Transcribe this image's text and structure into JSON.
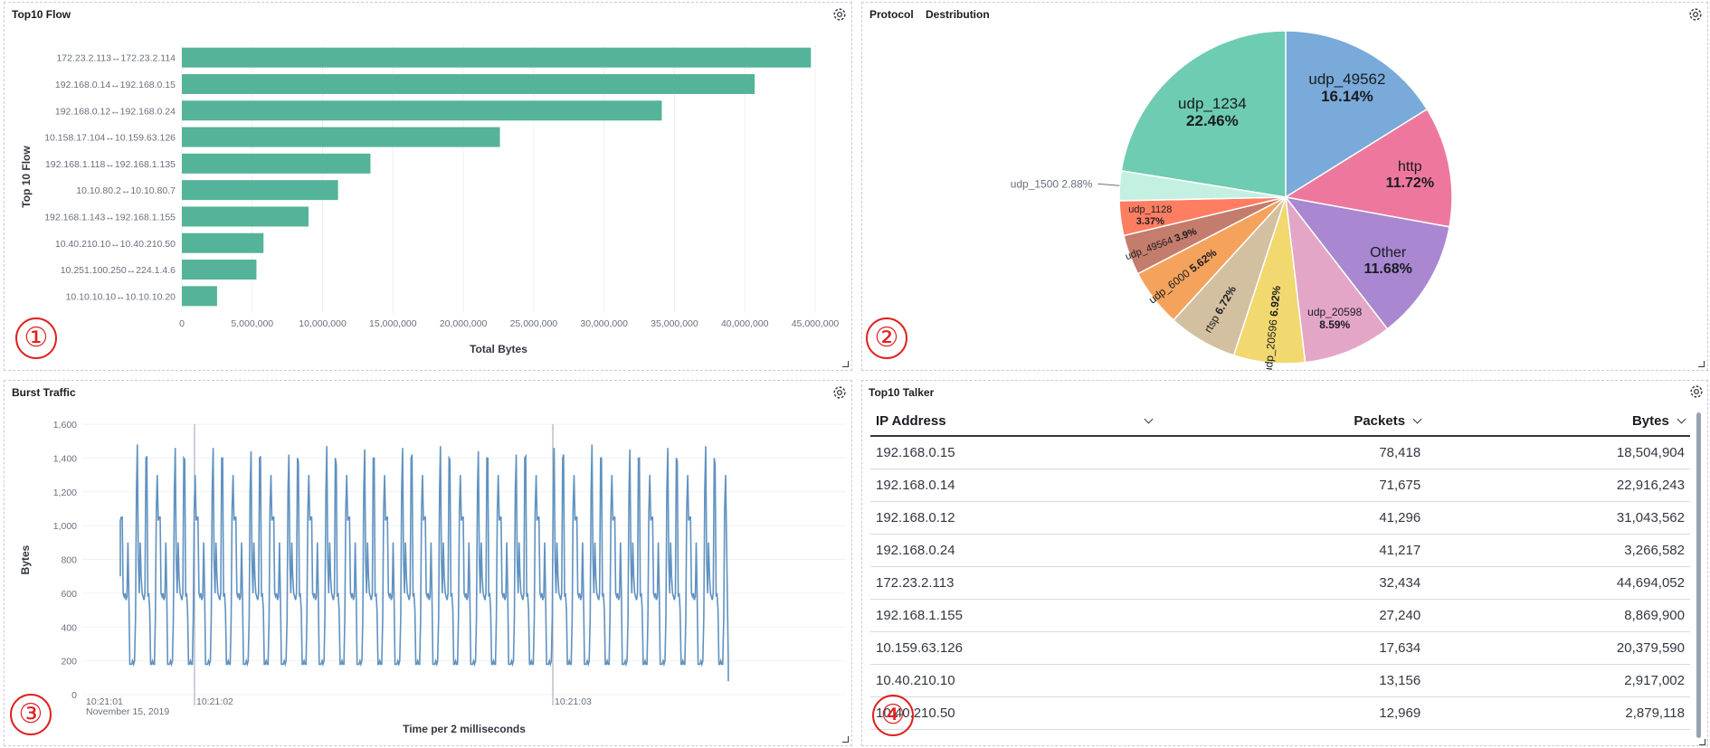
{
  "panels": {
    "top10_flow": {
      "title": "Top10 Flow",
      "badge": "①"
    },
    "protocol": {
      "title": "Protocol",
      "title2": "Destribution",
      "badge": "②"
    },
    "burst": {
      "title": "Burst Traffic",
      "badge": "③"
    },
    "talker": {
      "title": "Top10 Talker",
      "badge": "④"
    }
  },
  "flow_chart": {
    "type": "bar",
    "orientation": "horizontal",
    "xlabel": "Total Bytes",
    "ylabel": "Top 10 Flow",
    "xlim": [
      0,
      45000000
    ],
    "xticks": [
      "0",
      "5,000,000",
      "10,000,000",
      "15,000,000",
      "20,000,000",
      "25,000,000",
      "30,000,000",
      "35,000,000",
      "40,000,000",
      "45,000,000"
    ],
    "categories": [
      "172.23.2.113↔172.23.2.114",
      "192.168.0.14↔192.168.0.15",
      "192.168.0.12↔192.168.0.24",
      "10.158.17.104↔10.159.63.126",
      "192.168.1.118↔192.168.1.135",
      "10.10.80.2↔10.10.80.7",
      "192.168.1.143↔192.168.1.155",
      "10.40.210.10↔10.40.210.50",
      "10.251.100.250↔224.1.4.6",
      "10.10.10.10↔10.10.10.20"
    ],
    "values": [
      44700000,
      40700000,
      34100000,
      22600000,
      13400000,
      11100000,
      9000000,
      5800000,
      5300000,
      2500000
    ],
    "color": "#54b399"
  },
  "pie_chart": {
    "type": "pie",
    "slices": [
      {
        "label": "udp_49562",
        "pct": "16.14%",
        "value": 16.14,
        "color": "#79aad9"
      },
      {
        "label": "http",
        "pct": "11.72%",
        "value": 11.72,
        "color": "#ee789d"
      },
      {
        "label": "Other",
        "pct": "11.68%",
        "value": 11.68,
        "color": "#a987d1"
      },
      {
        "label": "udp_20598",
        "pct": "8.59%",
        "value": 8.59,
        "color": "#e4a6c7"
      },
      {
        "label": "udp_20596",
        "pct": "6.92%",
        "value": 6.92,
        "color": "#f1d86f"
      },
      {
        "label": "rtsp",
        "pct": "6.72%",
        "value": 6.72,
        "color": "#d2c0a0"
      },
      {
        "label": "udp_6000",
        "pct": "5.62%",
        "value": 5.62,
        "color": "#f5a35c"
      },
      {
        "label": "udp_49564",
        "pct": "3.9%",
        "value": 3.9,
        "color": "#c47c6c"
      },
      {
        "label": "udp_1128",
        "pct": "3.37%",
        "value": 3.37,
        "color": "#ff7e62"
      },
      {
        "label": "udp_1500",
        "pct": "2.88%",
        "value": 2.88,
        "color": "#c3f0e1"
      },
      {
        "label": "udp_1234",
        "pct": "22.46%",
        "value": 22.46,
        "color": "#6dccb1"
      }
    ]
  },
  "burst_chart": {
    "type": "line",
    "ylabel": "Bytes",
    "xlabel": "Time per 2 milliseconds",
    "ylim": [
      0,
      1600
    ],
    "yticks": [
      "0",
      "200",
      "400",
      "600",
      "800",
      "1,000",
      "1,200",
      "1,400",
      "1,600"
    ],
    "xticks": [
      {
        "label": "10:21:01",
        "sub": "November 15, 2019"
      },
      {
        "label": "10:21:02",
        "sub": ""
      },
      {
        "label": "10:21:03",
        "sub": ""
      }
    ],
    "color": "#6092c0",
    "pattern": [
      1030,
      1050,
      1050,
      600,
      580,
      600,
      560,
      580,
      900,
      600,
      180,
      180,
      180,
      200,
      180,
      200,
      450,
      1200,
      1450,
      800,
      600,
      900,
      700,
      600,
      580,
      560,
      600,
      1400,
      900,
      580,
      600,
      500,
      180,
      180,
      200,
      180,
      180,
      450,
      1100,
      1300
    ],
    "peaks": [
      1480,
      1460,
      1460,
      1440,
      1420,
      1470,
      1450,
      1460,
      1470,
      1440,
      1420,
      1460,
      1480,
      1450,
      1460,
      1470
    ]
  },
  "talker_table": {
    "columns": [
      "IP Address",
      "Packets",
      "Bytes"
    ],
    "rows": [
      [
        "192.168.0.15",
        "78,418",
        "18,504,904"
      ],
      [
        "192.168.0.14",
        "71,675",
        "22,916,243"
      ],
      [
        "192.168.0.12",
        "41,296",
        "31,043,562"
      ],
      [
        "192.168.0.24",
        "41,217",
        "3,266,582"
      ],
      [
        "172.23.2.113",
        "32,434",
        "44,694,052"
      ],
      [
        "192.168.1.155",
        "27,240",
        "8,869,900"
      ],
      [
        "10.159.63.126",
        "17,634",
        "20,379,590"
      ],
      [
        "10.40.210.10",
        "13,156",
        "2,917,002"
      ],
      [
        "10.40.210.50",
        "12,969",
        "2,879,118"
      ]
    ]
  }
}
